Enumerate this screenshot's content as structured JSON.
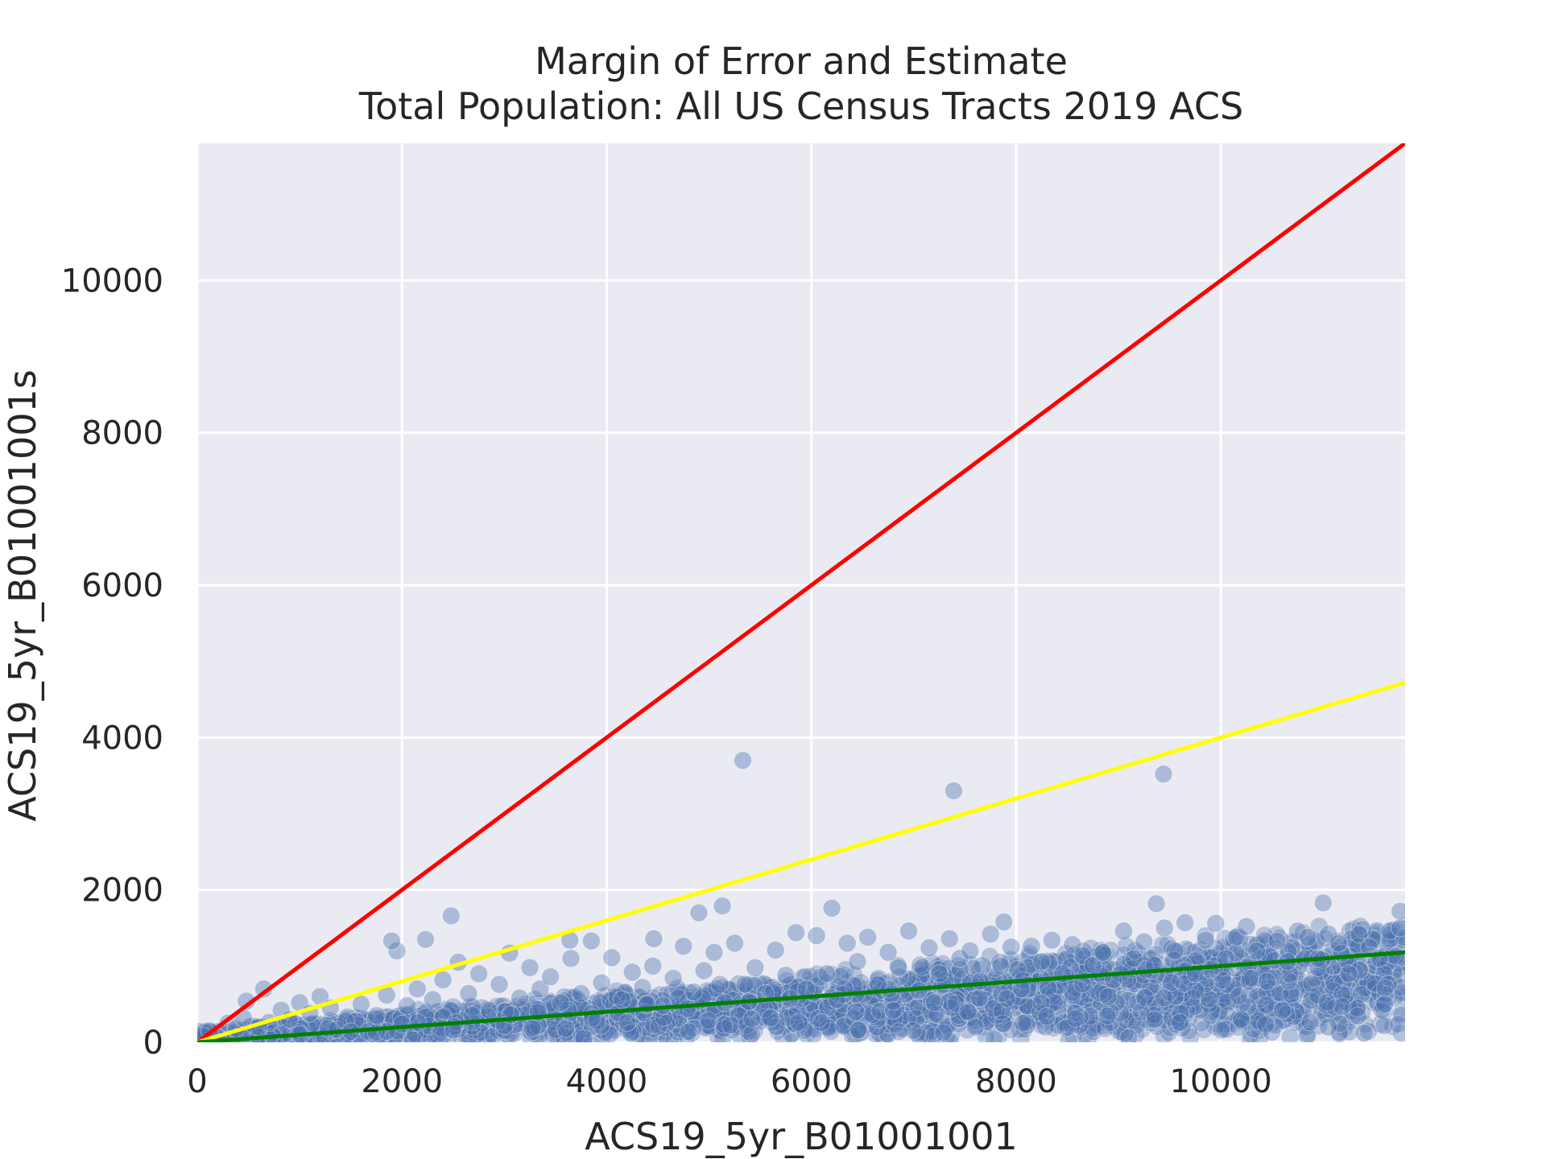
{
  "chart_data": {
    "type": "scatter",
    "title": "Margin of Error and Estimate",
    "subtitle": "Total Population: All US Census Tracts 2019 ACS",
    "xlabel": "ACS19_5yr_B01001001",
    "ylabel": "ACS19_5yr_B01001001s",
    "xlim": [
      0,
      11800
    ],
    "ylim": [
      0,
      11800
    ],
    "xticks": [
      0,
      2000,
      4000,
      6000,
      8000,
      10000
    ],
    "yticks": [
      0,
      2000,
      4000,
      6000,
      8000,
      10000
    ],
    "grid": true,
    "background": "#eaeaf2",
    "point_color": "#4c72b0",
    "point_opacity": 0.35,
    "reference_lines": [
      {
        "color": "#ff0000",
        "slope": 1.0,
        "x": [
          0,
          11800
        ],
        "y": [
          0,
          11800
        ]
      },
      {
        "color": "#ffff00",
        "slope": 0.4,
        "x": [
          0,
          11800
        ],
        "y": [
          0,
          4720
        ]
      },
      {
        "color": "#008000",
        "slope": 0.1,
        "x": [
          0,
          11800
        ],
        "y": [
          0,
          1180
        ]
      }
    ],
    "outliers": [
      {
        "x": 5330,
        "y": 3700
      },
      {
        "x": 7390,
        "y": 3300
      },
      {
        "x": 9440,
        "y": 3520
      },
      {
        "x": 2480,
        "y": 1660
      },
      {
        "x": 1900,
        "y": 1330
      },
      {
        "x": 2230,
        "y": 1350
      },
      {
        "x": 4900,
        "y": 1700
      },
      {
        "x": 5130,
        "y": 1790
      },
      {
        "x": 6200,
        "y": 1760
      },
      {
        "x": 7880,
        "y": 1580
      },
      {
        "x": 9370,
        "y": 1820
      },
      {
        "x": 11000,
        "y": 1830
      },
      {
        "x": 11750,
        "y": 1720
      },
      {
        "x": 3640,
        "y": 1340
      },
      {
        "x": 4460,
        "y": 1360
      }
    ],
    "series": [
      {
        "points": [
          [
            50,
            80
          ],
          [
            120,
            150
          ],
          [
            200,
            60
          ],
          [
            300,
            250
          ],
          [
            380,
            180
          ],
          [
            450,
            320
          ],
          [
            480,
            540
          ],
          [
            650,
            700
          ],
          [
            700,
            260
          ],
          [
            820,
            420
          ],
          [
            900,
            300
          ],
          [
            1000,
            520
          ],
          [
            1100,
            380
          ],
          [
            1200,
            600
          ],
          [
            1300,
            450
          ],
          [
            1450,
            280
          ],
          [
            1600,
            500
          ],
          [
            1750,
            350
          ],
          [
            1850,
            620
          ],
          [
            1950,
            1200
          ],
          [
            2050,
            480
          ],
          [
            2150,
            700
          ],
          [
            2300,
            560
          ],
          [
            2400,
            820
          ],
          [
            2550,
            1050
          ],
          [
            2650,
            640
          ],
          [
            2750,
            900
          ],
          [
            2850,
            420
          ],
          [
            2950,
            760
          ],
          [
            3050,
            1170
          ],
          [
            3150,
            580
          ],
          [
            3250,
            980
          ],
          [
            3350,
            700
          ],
          [
            3450,
            860
          ],
          [
            3550,
            520
          ],
          [
            3650,
            1100
          ],
          [
            3750,
            640
          ],
          [
            3850,
            1330
          ],
          [
            3950,
            780
          ],
          [
            4050,
            1110
          ],
          [
            4150,
            560
          ],
          [
            4250,
            920
          ],
          [
            4350,
            720
          ],
          [
            4450,
            1000
          ],
          [
            4550,
            480
          ],
          [
            4650,
            840
          ],
          [
            4750,
            1260
          ],
          [
            4850,
            660
          ],
          [
            4950,
            940
          ],
          [
            5050,
            1180
          ],
          [
            5150,
            520
          ],
          [
            5250,
            1300
          ],
          [
            5350,
            760
          ],
          [
            5450,
            980
          ],
          [
            5550,
            640
          ],
          [
            5650,
            1210
          ],
          [
            5750,
            880
          ],
          [
            5850,
            1440
          ],
          [
            5950,
            700
          ],
          [
            6050,
            1400
          ],
          [
            6150,
            900
          ],
          [
            6250,
            560
          ],
          [
            6350,
            1300
          ],
          [
            6450,
            1060
          ],
          [
            6550,
            1380
          ],
          [
            6650,
            760
          ],
          [
            6750,
            1180
          ],
          [
            6850,
            980
          ],
          [
            6950,
            1460
          ],
          [
            7050,
            680
          ],
          [
            7150,
            1240
          ],
          [
            7250,
            900
          ],
          [
            7350,
            1360
          ],
          [
            7450,
            1100
          ],
          [
            7550,
            1200
          ],
          [
            7650,
            800
          ],
          [
            7750,
            1420
          ],
          [
            7850,
            1000
          ],
          [
            7950,
            1250
          ],
          [
            8050,
            700
          ],
          [
            8150,
            1260
          ],
          [
            8250,
            1060
          ],
          [
            8350,
            1340
          ],
          [
            8450,
            900
          ],
          [
            8550,
            1280
          ],
          [
            8650,
            1140
          ],
          [
            8750,
            1010
          ],
          [
            8850,
            1180
          ],
          [
            8950,
            820
          ],
          [
            9050,
            1460
          ],
          [
            9150,
            1100
          ],
          [
            9250,
            1320
          ],
          [
            9350,
            1010
          ],
          [
            9450,
            1500
          ],
          [
            9550,
            1200
          ],
          [
            9650,
            1570
          ],
          [
            9750,
            900
          ],
          [
            9850,
            1340
          ],
          [
            9950,
            1560
          ],
          [
            10050,
            1100
          ],
          [
            10150,
            1380
          ],
          [
            10250,
            1520
          ],
          [
            10350,
            1200
          ],
          [
            10450,
            800
          ],
          [
            10550,
            1330
          ],
          [
            10650,
            1060
          ],
          [
            10750,
            1460
          ],
          [
            10850,
            1380
          ],
          [
            10950,
            1100
          ],
          [
            11050,
            1420
          ],
          [
            11150,
            1300
          ],
          [
            11250,
            900
          ],
          [
            11350,
            1420
          ],
          [
            11450,
            1250
          ],
          [
            11550,
            1100
          ],
          [
            11650,
            1460
          ],
          [
            11750,
            1500
          ],
          [
            11050,
            200
          ],
          [
            11400,
            120
          ],
          [
            10200,
            300
          ],
          [
            9100,
            60
          ],
          [
            8300,
            340
          ],
          [
            7600,
            200
          ],
          [
            6800,
            420
          ],
          [
            6100,
            260
          ],
          [
            5600,
            320
          ],
          [
            4800,
            140
          ],
          [
            4200,
            260
          ],
          [
            3600,
            180
          ],
          [
            3000,
            220
          ],
          [
            2500,
            160
          ],
          [
            2000,
            240
          ],
          [
            1500,
            140
          ],
          [
            1000,
            100
          ],
          [
            600,
            200
          ],
          [
            9600,
            260
          ],
          [
            10600,
            420
          ],
          [
            11600,
            500
          ],
          [
            8900,
            600
          ],
          [
            7200,
            520
          ]
        ]
      }
    ]
  }
}
